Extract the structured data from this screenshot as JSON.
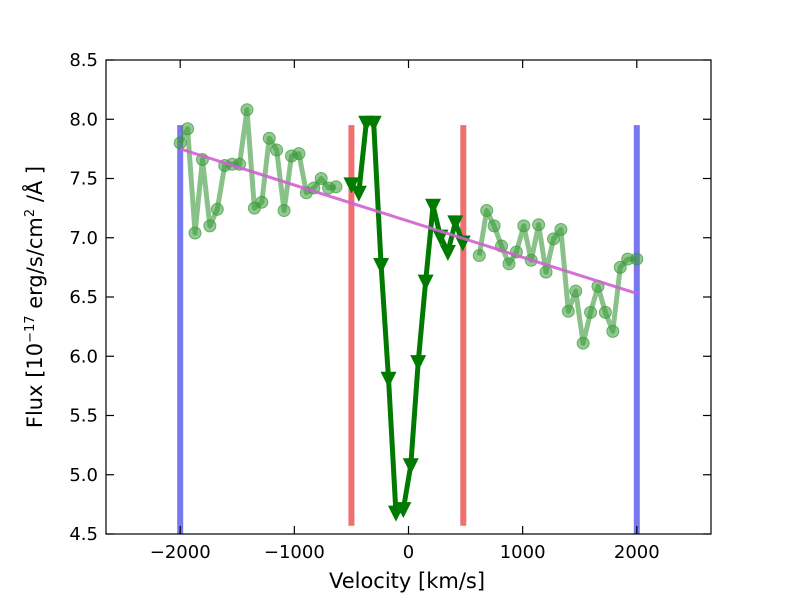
{
  "chart_data": {
    "type": "line",
    "xlabel": "Velocity [km/s]",
    "ylabel": "Flux [10^-17 erg/s/cm^2 /Å ]",
    "ylabel_parts": {
      "prefix": "Flux [10",
      "exp1": "−17",
      "middle": " erg/s/cm",
      "exp2": "2",
      "suffix": " /Å ]"
    },
    "xlim": [
      -2650,
      2650
    ],
    "ylim": [
      4.5,
      8.5
    ],
    "x_ticks": [
      -2000,
      -1000,
      0,
      1000,
      2000
    ],
    "x_tick_labels": [
      "−2000",
      "−1000",
      "0",
      "1000",
      "2000"
    ],
    "y_ticks": [
      4.5,
      5.0,
      5.5,
      6.0,
      6.5,
      7.0,
      7.5,
      8.0,
      8.5
    ],
    "y_tick_labels": [
      "4.5",
      "5.0",
      "5.5",
      "6.0",
      "6.5",
      "7.0",
      "7.5",
      "8.0",
      "8.5"
    ],
    "grid": false,
    "legend": null,
    "series": [
      {
        "kind": "continuum-points",
        "color": "#3a9a3a",
        "marker": "circle",
        "segments": [
          {
            "x": [
              -2000,
              -1935,
              -1870,
              -1805,
              -1740,
              -1675,
              -1610,
              -1545,
              -1480,
              -1415,
              -1350,
              -1285,
              -1220,
              -1155,
              -1090,
              -1025,
              -960,
              -895,
              -830,
              -765,
              -700,
              -635
            ],
            "y": [
              7.8,
              7.92,
              7.04,
              7.66,
              7.1,
              7.24,
              7.61,
              7.62,
              7.62,
              8.08,
              7.25,
              7.3,
              7.84,
              7.74,
              7.23,
              7.69,
              7.71,
              7.38,
              7.42,
              7.5,
              7.42,
              7.43
            ]
          },
          {
            "x": [
              620,
              685,
              750,
              815,
              880,
              945,
              1010,
              1075,
              1140,
              1205,
              1270,
              1335,
              1400,
              1465,
              1530,
              1595,
              1660,
              1725,
              1790,
              1855,
              1920,
              2000
            ],
            "y": [
              6.85,
              7.23,
              7.1,
              6.93,
              6.78,
              6.88,
              7.1,
              6.81,
              7.11,
              6.71,
              6.99,
              7.07,
              6.38,
              6.55,
              6.11,
              6.37,
              6.59,
              6.37,
              6.21,
              6.75,
              6.82,
              6.82
            ]
          }
        ]
      },
      {
        "kind": "line-region",
        "color": "#007a00",
        "marker": "triangle-down",
        "x": [
          -500,
          -435,
          -370,
          -305,
          -240,
          -175,
          -110,
          -45,
          20,
          85,
          150,
          215,
          280,
          345,
          410,
          475
        ],
        "y": [
          7.45,
          7.38,
          7.97,
          7.97,
          6.77,
          5.81,
          4.68,
          4.71,
          5.08,
          5.95,
          6.63,
          7.27,
          7.01,
          6.88,
          7.13,
          6.96
        ]
      },
      {
        "kind": "continuum-fit",
        "color": "#d060d0",
        "x": [
          -2000,
          2000
        ],
        "y": [
          7.75,
          6.53
        ]
      }
    ],
    "vertical_lines": [
      {
        "x": -2000,
        "color": "#7777ee",
        "y": [
          4.5,
          7.95
        ]
      },
      {
        "x": 2000,
        "color": "#7777ee",
        "y": [
          4.5,
          7.95
        ]
      },
      {
        "x": -500,
        "color": "#f07070",
        "y": [
          4.57,
          7.95
        ]
      },
      {
        "x": 480,
        "color": "#f07070",
        "y": [
          4.57,
          7.95
        ]
      }
    ]
  }
}
